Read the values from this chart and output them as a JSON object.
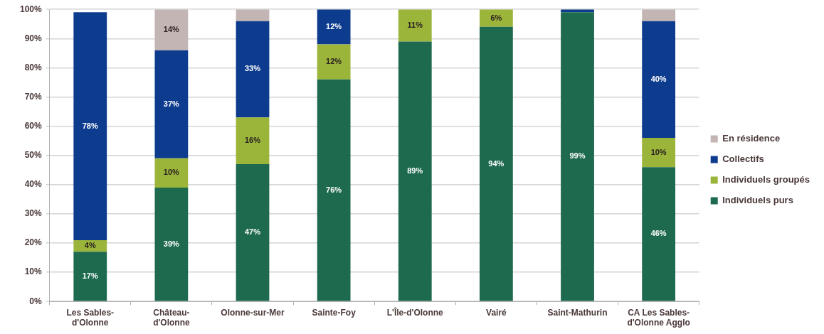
{
  "chart_data": {
    "type": "bar",
    "stacked": true,
    "categories": [
      "Les Sables-\nd'Olonne",
      "Château-\nd'Olonne",
      "Olonne-sur-Mer",
      "Sainte-Foy",
      "L'Île-d'Olonne",
      "Vairé",
      "Saint-Mathurin",
      "CA Les Sables-\nd'Olonne Agglo"
    ],
    "series": [
      {
        "name": "Individuels purs",
        "color": "#1e6a4f",
        "values": [
          17,
          39,
          47,
          76,
          89,
          94,
          99,
          46
        ],
        "value_labels": [
          "17%",
          "39%",
          "47%",
          "76%",
          "89%",
          "94%",
          "99%",
          "46%"
        ]
      },
      {
        "name": "Individuels groupés",
        "color": "#9bb53b",
        "values": [
          4,
          10,
          16,
          12,
          11,
          6,
          null,
          10
        ],
        "value_labels": [
          "4%",
          "10%",
          "16%",
          "12%",
          "11%",
          "6%",
          null,
          "10%"
        ]
      },
      {
        "name": "Collectifs",
        "color": "#0d3b8e",
        "values": [
          78,
          37,
          33,
          12,
          null,
          null,
          1,
          40
        ],
        "value_labels": [
          "78%",
          "37%",
          "33%",
          "12%",
          null,
          null,
          null,
          "40%"
        ]
      },
      {
        "name": "En résidence",
        "color": "#c3b5b4",
        "values": [
          null,
          14,
          4,
          null,
          null,
          null,
          null,
          4
        ],
        "value_labels": [
          null,
          "14%",
          null,
          null,
          null,
          null,
          null,
          null
        ]
      }
    ],
    "ylim": [
      0,
      100
    ],
    "yticks": [
      {
        "value": 0,
        "label": "0%"
      },
      {
        "value": 10,
        "label": "10%"
      },
      {
        "value": 20,
        "label": "20%"
      },
      {
        "value": 30,
        "label": "30%"
      },
      {
        "value": 40,
        "label": "40%"
      },
      {
        "value": 50,
        "label": "50%"
      },
      {
        "value": 60,
        "label": "60%"
      },
      {
        "value": 70,
        "label": "70%"
      },
      {
        "value": 80,
        "label": "80%"
      },
      {
        "value": 90,
        "label": "90%"
      },
      {
        "value": 100,
        "label": "100%"
      }
    ],
    "grid": "y",
    "legend": "right"
  }
}
